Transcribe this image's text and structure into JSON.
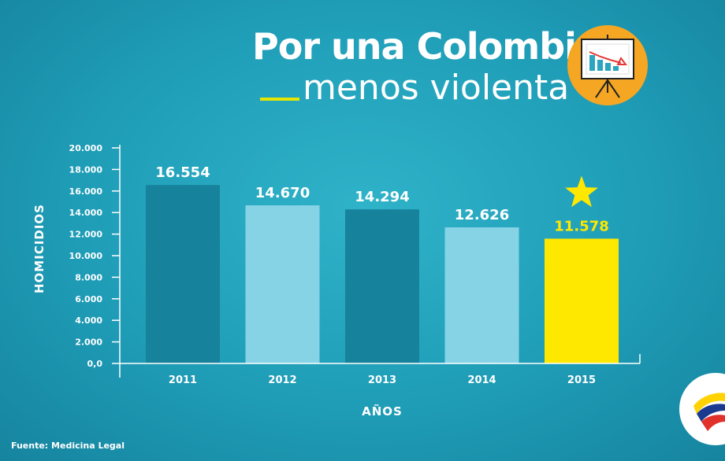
{
  "header": {
    "title_line1": "Por una Colombia",
    "title_line2": "menos violenta"
  },
  "footer": {
    "source": "Fuente: Medicina Legal"
  },
  "colors": {
    "background": "#1f9db7",
    "bar_dark": "#17829c",
    "bar_light": "#86d3e6",
    "bar_highlight": "#ffe800",
    "label_white": "#ffffff",
    "label_highlight": "#ffe800",
    "accent_circle": "#f5a623"
  },
  "icons": {
    "presentation": "presentation-board-icon",
    "highlight": "star-icon",
    "brand": "colombia-logo-icon"
  },
  "chart_data": {
    "type": "bar",
    "title": "",
    "xlabel": "AÑOS",
    "ylabel": "HOMICIDIOS",
    "categories": [
      "2011",
      "2012",
      "2013",
      "2014",
      "2015"
    ],
    "values": [
      16554,
      14670,
      14294,
      12626,
      11578
    ],
    "value_labels": [
      "16.554",
      "14.670",
      "14.294",
      "12.626",
      "11.578"
    ],
    "ylim": [
      0,
      20000
    ],
    "yticks": [
      0,
      2000,
      4000,
      6000,
      8000,
      10000,
      12000,
      14000,
      16000,
      18000,
      20000
    ],
    "ytick_labels": [
      "0,0",
      "2.000",
      "4.000",
      "6.000",
      "8.000",
      "10.000",
      "12.000",
      "14.000",
      "16.000",
      "18.000",
      "20.000"
    ],
    "bar_styles": [
      "dark",
      "light",
      "dark",
      "light",
      "highlight"
    ],
    "highlighted_category": "2015",
    "grid": false,
    "legend": "none"
  }
}
